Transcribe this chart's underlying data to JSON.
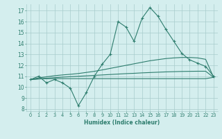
{
  "xlabel": "Humidex (Indice chaleur)",
  "x": [
    0,
    1,
    2,
    3,
    4,
    5,
    6,
    7,
    8,
    9,
    10,
    11,
    12,
    13,
    14,
    15,
    16,
    17,
    18,
    19,
    20,
    21,
    22,
    23
  ],
  "y_main": [
    10.7,
    11.0,
    10.4,
    10.7,
    10.4,
    9.9,
    8.3,
    9.5,
    11.0,
    12.1,
    13.0,
    16.0,
    15.5,
    14.2,
    16.3,
    17.3,
    16.5,
    15.3,
    14.2,
    13.1,
    12.5,
    12.2,
    11.9,
    11.0
  ],
  "y_linear_top": [
    10.7,
    10.85,
    10.95,
    11.05,
    11.12,
    11.18,
    11.25,
    11.35,
    11.45,
    11.58,
    11.72,
    11.86,
    12.0,
    12.14,
    12.28,
    12.42,
    12.52,
    12.62,
    12.68,
    12.72,
    12.72,
    12.68,
    12.55,
    10.9
  ],
  "y_linear_bot": [
    10.7,
    10.76,
    10.82,
    10.87,
    10.92,
    10.96,
    11.0,
    11.04,
    11.08,
    11.12,
    11.16,
    11.2,
    11.24,
    11.27,
    11.31,
    11.34,
    11.37,
    11.4,
    11.42,
    11.44,
    11.45,
    11.46,
    11.46,
    10.9
  ],
  "y_flat": [
    10.7,
    10.75,
    10.78,
    10.78,
    10.78,
    10.78,
    10.78,
    10.78,
    10.78,
    10.78,
    10.78,
    10.78,
    10.78,
    10.78,
    10.78,
    10.78,
    10.78,
    10.78,
    10.78,
    10.78,
    10.78,
    10.78,
    10.78,
    10.9
  ],
  "color": "#2e7d6e",
  "bg_color": "#d4eeee",
  "grid_color": "#a8cccc",
  "ylim": [
    7.8,
    17.6
  ],
  "yticks": [
    8,
    9,
    10,
    11,
    12,
    13,
    14,
    15,
    16,
    17
  ],
  "xlim": [
    -0.5,
    23.5
  ],
  "xticks": [
    0,
    1,
    2,
    3,
    4,
    5,
    6,
    7,
    8,
    9,
    10,
    11,
    12,
    13,
    14,
    15,
    16,
    17,
    18,
    19,
    20,
    21,
    22,
    23
  ]
}
